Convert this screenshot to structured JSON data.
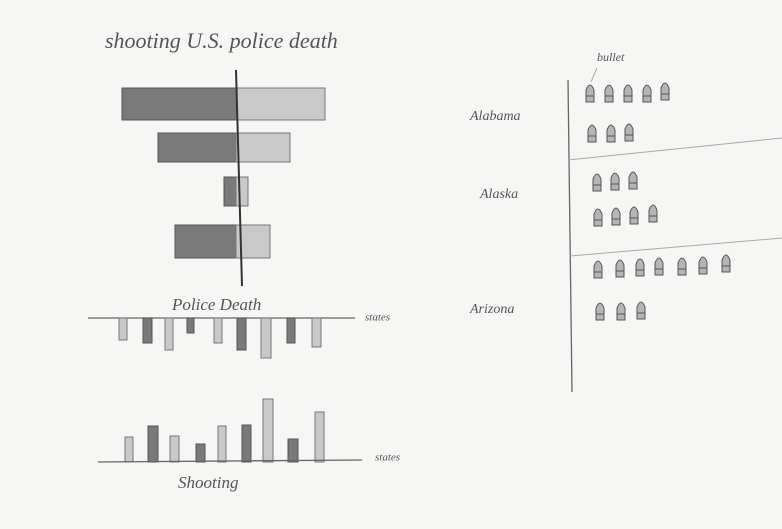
{
  "title": "shooting U.S. police death",
  "police_death_chart": {
    "title": "Police Death",
    "axis_label": "states"
  },
  "shooting_chart": {
    "title": "Shooting",
    "axis_label": "states"
  },
  "bullet_chart": {
    "annotation": "bullet",
    "states": [
      "Alabama",
      "Alaska",
      "Arizona"
    ]
  }
}
